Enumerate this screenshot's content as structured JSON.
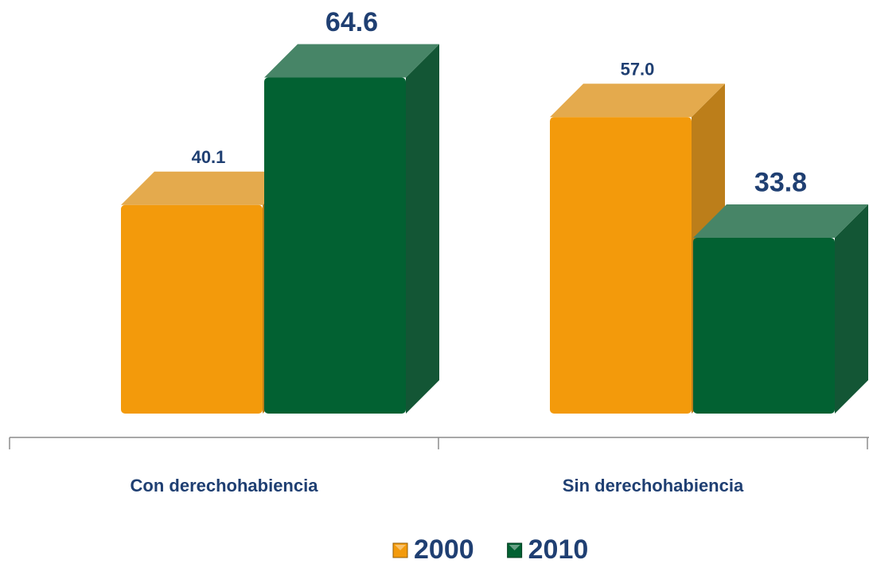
{
  "chart_data": {
    "type": "bar3d",
    "categories": [
      "Con derechohabiencia",
      "Sin derechohabiencia"
    ],
    "series": [
      {
        "name": "2000",
        "color": "#f39a0b",
        "values": [
          40.1,
          57.0
        ],
        "value_labels": [
          "40.1",
          "57.0"
        ]
      },
      {
        "name": "2010",
        "color": "#026132",
        "values": [
          64.6,
          33.8
        ],
        "value_labels": [
          "64.6",
          "33.8"
        ]
      }
    ],
    "legend": "bottom"
  }
}
